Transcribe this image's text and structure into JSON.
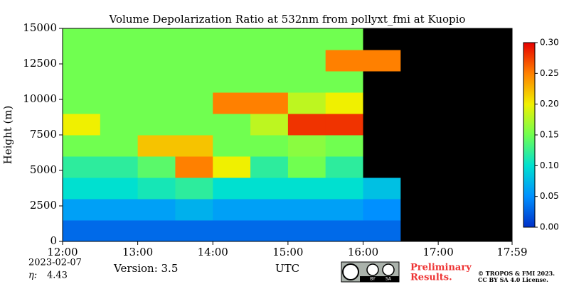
{
  "chart_data": {
    "type": "heatmap",
    "title": "Volume Depolarization Ratio at 532nm from pollyxt_fmi at Kuopio",
    "ylabel": "Height (m)",
    "xlabel": "UTC",
    "x_edges": [
      12,
      12.5,
      13,
      13.5,
      14,
      14.5,
      15,
      15.5,
      16,
      16.5,
      17,
      17.5,
      17.9833
    ],
    "y_edges": [
      0,
      1500,
      3000,
      4500,
      6000,
      7500,
      9000,
      10500,
      12000,
      13500,
      15000
    ],
    "values": [
      [
        0.03,
        0.03,
        0.03,
        0.03,
        0.03,
        0.03,
        0.03,
        0.03,
        0.03,
        null,
        null,
        null
      ],
      [
        0.06,
        0.06,
        0.06,
        0.07,
        0.06,
        0.06,
        0.06,
        0.06,
        0.05,
        null,
        null,
        null
      ],
      [
        0.1,
        0.1,
        0.11,
        0.12,
        0.1,
        0.1,
        0.1,
        0.1,
        0.08,
        null,
        null,
        null
      ],
      [
        0.12,
        0.12,
        0.14,
        0.25,
        0.2,
        0.12,
        0.15,
        0.12,
        null,
        null,
        null,
        null
      ],
      [
        0.15,
        0.15,
        0.22,
        0.22,
        0.15,
        0.15,
        0.16,
        0.15,
        null,
        null,
        null,
        null
      ],
      [
        0.2,
        0.15,
        0.15,
        0.15,
        0.15,
        0.18,
        0.28,
        0.28,
        null,
        null,
        null,
        null
      ],
      [
        0.15,
        0.15,
        0.15,
        0.15,
        0.25,
        0.25,
        0.18,
        0.2,
        null,
        null,
        null,
        null
      ],
      [
        0.15,
        0.15,
        0.15,
        0.15,
        0.15,
        0.15,
        0.15,
        0.15,
        null,
        null,
        null,
        null
      ],
      [
        0.15,
        0.15,
        0.15,
        0.15,
        0.15,
        0.15,
        0.15,
        0.25,
        0.25,
        null,
        null,
        null
      ],
      [
        0.15,
        0.15,
        0.15,
        0.15,
        0.15,
        0.15,
        0.15,
        0.15,
        null,
        null,
        null,
        null
      ]
    ],
    "xlim": [
      12,
      17.9833
    ],
    "ylim": [
      0,
      15000
    ],
    "xticks": [
      {
        "value": 12,
        "label": "12:00"
      },
      {
        "value": 13,
        "label": "13:00"
      },
      {
        "value": 14,
        "label": "14:00"
      },
      {
        "value": 15,
        "label": "15:00"
      },
      {
        "value": 16,
        "label": "16:00"
      },
      {
        "value": 17,
        "label": "17:00"
      },
      {
        "value": 17.9833,
        "label": "17:59"
      }
    ],
    "yticks": [
      0,
      2500,
      5000,
      7500,
      10000,
      12500,
      15000
    ],
    "colormap": [
      "#0030c8",
      "#0090ff",
      "#00e0d0",
      "#70ff50",
      "#f0f000",
      "#ff8000",
      "#e60000"
    ],
    "nodata_color": "#000000",
    "clim": [
      0,
      0.3
    ],
    "cticks": [
      {
        "value": 0,
        "label": "0.00"
      },
      {
        "value": 0.05,
        "label": "0.05"
      },
      {
        "value": 0.1,
        "label": "0.10"
      },
      {
        "value": 0.15,
        "label": "0.15"
      },
      {
        "value": 0.2,
        "label": "0.20"
      },
      {
        "value": 0.25,
        "label": "0.25"
      },
      {
        "value": 0.3,
        "label": "0.30"
      }
    ],
    "date": "2023-02-07",
    "eta_label": "η:",
    "eta": 4.43,
    "version": "Version: 3.5",
    "license_by": "BY",
    "license_sa": "SA",
    "preliminary": [
      "Preliminary",
      "Results."
    ],
    "copyright": [
      "© TROPOS & FMI 2023.",
      "CC BY SA 4.0 License."
    ]
  }
}
